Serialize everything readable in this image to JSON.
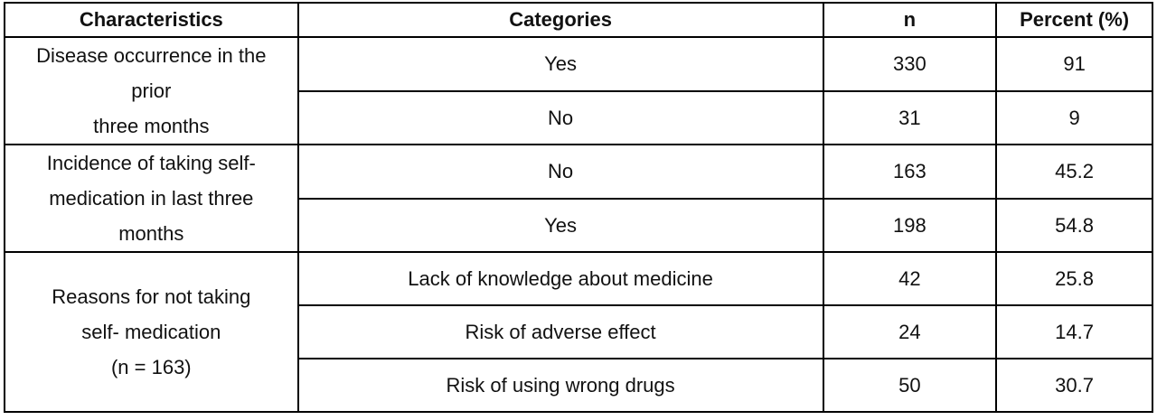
{
  "table": {
    "header": [
      "Characteristics",
      "Categories",
      "n",
      "Percent (%)"
    ],
    "groups": [
      {
        "label": [
          "Disease occurrence in the",
          "prior",
          "three months"
        ],
        "rows": [
          [
            "Yes",
            "330",
            "91"
          ],
          [
            "No",
            "31",
            "9"
          ]
        ]
      },
      {
        "label": [
          "Incidence of taking self-",
          "medication in last three",
          "months"
        ],
        "rows": [
          [
            "No",
            "163",
            "45.2"
          ],
          [
            "Yes",
            "198",
            "54.8"
          ]
        ]
      },
      {
        "label": [
          "Reasons for not taking",
          "self- medication",
          "(n = 163)"
        ],
        "rows": [
          [
            "Lack of knowledge about medicine",
            "42",
            "25.8"
          ],
          [
            "Risk of adverse effect",
            "24",
            "14.7"
          ],
          [
            "Risk of using wrong drugs",
            "50",
            "30.7"
          ]
        ]
      }
    ]
  }
}
